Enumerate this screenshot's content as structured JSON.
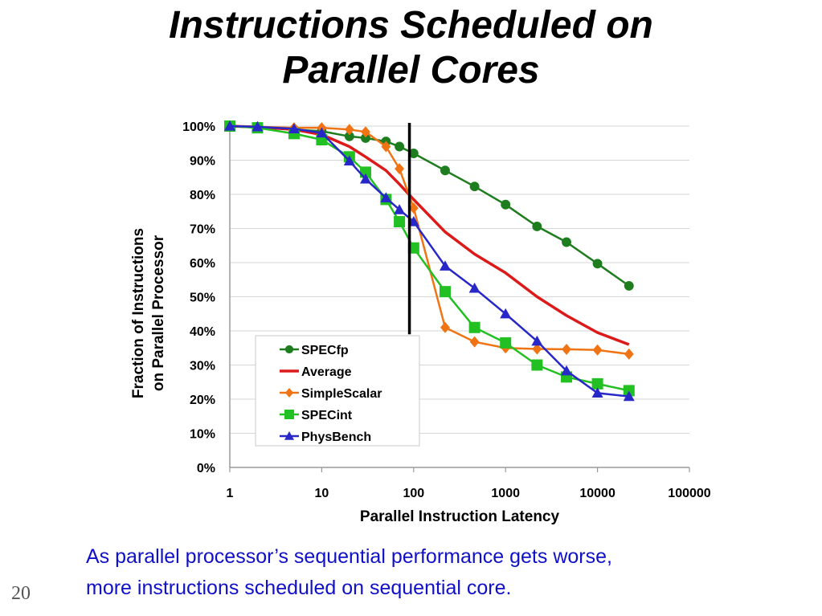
{
  "slide": {
    "title_line1": "Instructions Scheduled on",
    "title_line2": "Parallel Cores",
    "caption_line1": "As parallel processor’s sequential performance gets worse,",
    "caption_line2": "more instructions scheduled on sequential core.",
    "page_number": "20",
    "caption_color": "#1010c8"
  },
  "chart_data": {
    "type": "line",
    "xscale": "log",
    "xlabel": "Parallel Instruction Latency",
    "ylabel_line1": "Fraction of Instructions",
    "ylabel_line2": "on Parallel Processor",
    "xlim": [
      1,
      100000
    ],
    "ylim": [
      0,
      100
    ],
    "x_ticks": [
      {
        "value": 1,
        "label": "1"
      },
      {
        "value": 10,
        "label": "10"
      },
      {
        "value": 100,
        "label": "100"
      },
      {
        "value": 1000,
        "label": "1000"
      },
      {
        "value": 10000,
        "label": "10000"
      },
      {
        "value": 100000,
        "label": "100000"
      }
    ],
    "y_ticks": [
      {
        "value": 0,
        "label": "0%"
      },
      {
        "value": 10,
        "label": "10%"
      },
      {
        "value": 20,
        "label": "20%"
      },
      {
        "value": 30,
        "label": "30%"
      },
      {
        "value": 40,
        "label": "40%"
      },
      {
        "value": 50,
        "label": "50%"
      },
      {
        "value": 60,
        "label": "60%"
      },
      {
        "value": 70,
        "label": "70%"
      },
      {
        "value": 80,
        "label": "80%"
      },
      {
        "value": 90,
        "label": "90%"
      },
      {
        "value": 100,
        "label": "100%"
      }
    ],
    "grid": "horizontal",
    "legend_position": "lower-center",
    "vertical_marker": {
      "x": 90,
      "y_from": 39,
      "y_to": 100,
      "color": "#000000"
    },
    "series": [
      {
        "name": "SPECfp",
        "color": "#1e7d1e",
        "marker": "circle",
        "points": [
          [
            1,
            100
          ],
          [
            2,
            99.8
          ],
          [
            5,
            99
          ],
          [
            10,
            98.5
          ],
          [
            20,
            97
          ],
          [
            30,
            96.5
          ],
          [
            50,
            95.5
          ],
          [
            70,
            94
          ],
          [
            100,
            92
          ],
          [
            220,
            87
          ],
          [
            460,
            82.3
          ],
          [
            1000,
            77
          ],
          [
            2200,
            70.6
          ],
          [
            4600,
            66
          ],
          [
            10000,
            59.7
          ],
          [
            22000,
            53.2
          ]
        ]
      },
      {
        "name": "Average",
        "color": "#dd1a1a",
        "marker": "none",
        "points": [
          [
            1,
            100
          ],
          [
            2,
            99.7
          ],
          [
            5,
            99
          ],
          [
            10,
            97.5
          ],
          [
            20,
            94
          ],
          [
            30,
            91
          ],
          [
            50,
            87
          ],
          [
            70,
            83
          ],
          [
            100,
            78.5
          ],
          [
            220,
            69
          ],
          [
            460,
            62.5
          ],
          [
            1000,
            57
          ],
          [
            2200,
            50
          ],
          [
            4600,
            44.5
          ],
          [
            10000,
            39.5
          ],
          [
            22000,
            36
          ]
        ]
      },
      {
        "name": "SimpleScalar",
        "color": "#f07414",
        "marker": "diamond",
        "points": [
          [
            1,
            100
          ],
          [
            2,
            99.8
          ],
          [
            5,
            99.5
          ],
          [
            10,
            99.5
          ],
          [
            20,
            99
          ],
          [
            30,
            98.3
          ],
          [
            50,
            94
          ],
          [
            70,
            87.5
          ],
          [
            100,
            76
          ],
          [
            220,
            41
          ],
          [
            460,
            36.8
          ],
          [
            1000,
            35
          ],
          [
            2200,
            34.7
          ],
          [
            4600,
            34.6
          ],
          [
            10000,
            34.4
          ],
          [
            22000,
            33.2
          ]
        ]
      },
      {
        "name": "SPECint",
        "color": "#22c022",
        "marker": "square",
        "points": [
          [
            1,
            100
          ],
          [
            2,
            99.5
          ],
          [
            5,
            97.8
          ],
          [
            10,
            96
          ],
          [
            20,
            91
          ],
          [
            30,
            86.5
          ],
          [
            50,
            78.5
          ],
          [
            70,
            72
          ],
          [
            100,
            64.3
          ],
          [
            220,
            51.5
          ],
          [
            460,
            41
          ],
          [
            1000,
            36.5
          ],
          [
            2200,
            30
          ],
          [
            4600,
            26.5
          ],
          [
            10000,
            24.5
          ],
          [
            22000,
            22.5
          ]
        ]
      },
      {
        "name": "PhysBench",
        "color": "#2828c8",
        "marker": "triangle",
        "points": [
          [
            1,
            100
          ],
          [
            2,
            99.8
          ],
          [
            5,
            99.2
          ],
          [
            10,
            98
          ],
          [
            20,
            89.8
          ],
          [
            30,
            84.5
          ],
          [
            50,
            79
          ],
          [
            70,
            75.5
          ],
          [
            100,
            72
          ],
          [
            220,
            59
          ],
          [
            460,
            52.5
          ],
          [
            1000,
            45
          ],
          [
            2200,
            37
          ],
          [
            4600,
            28.3
          ],
          [
            10000,
            21.8
          ],
          [
            22000,
            20.8
          ]
        ]
      }
    ]
  }
}
